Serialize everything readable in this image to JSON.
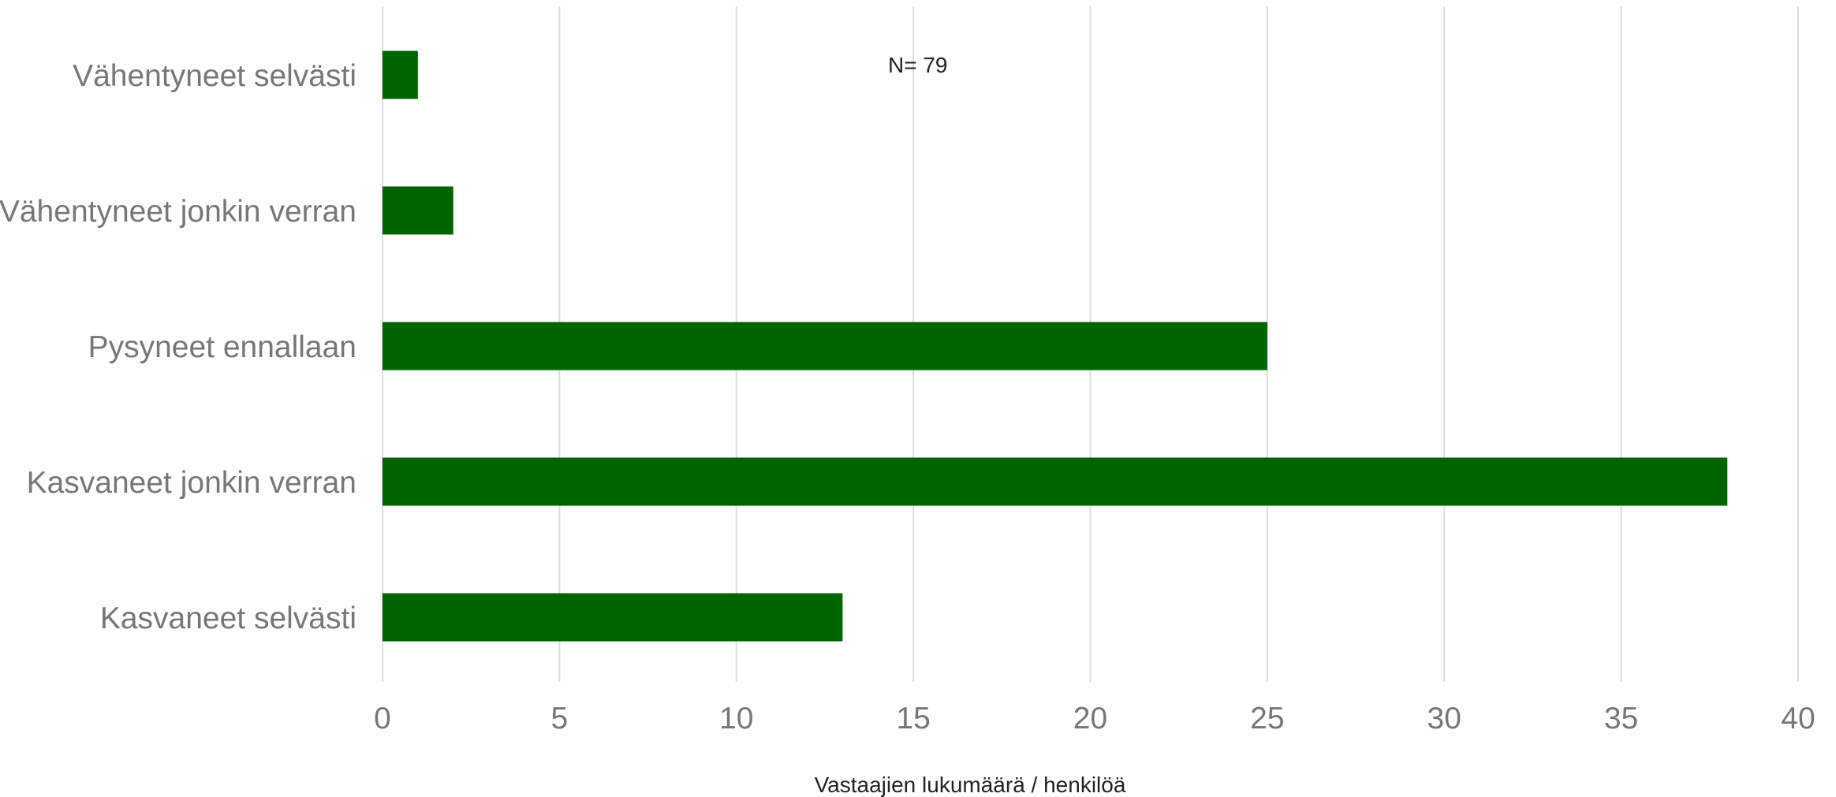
{
  "chart_data": {
    "type": "bar",
    "orientation": "horizontal",
    "categories": [
      "Vähentyneet selvästi",
      "Vähentyneet jonkin verran",
      "Pysyneet ennallaan",
      "Kasvaneet jonkin verran",
      "Kasvaneet selvästi"
    ],
    "values": [
      1,
      2,
      25,
      38,
      13
    ],
    "xlim": [
      0,
      40
    ],
    "xticks": [
      "0",
      "5",
      "10",
      "15",
      "20",
      "25",
      "30",
      "35",
      "40"
    ],
    "xlabel": "Vastaajien lukumäärä / henkilöä",
    "annotation": "N= 79",
    "grid": "vertical",
    "legend": "none",
    "bar_color": "#006400",
    "grid_color": "#dddddd"
  }
}
